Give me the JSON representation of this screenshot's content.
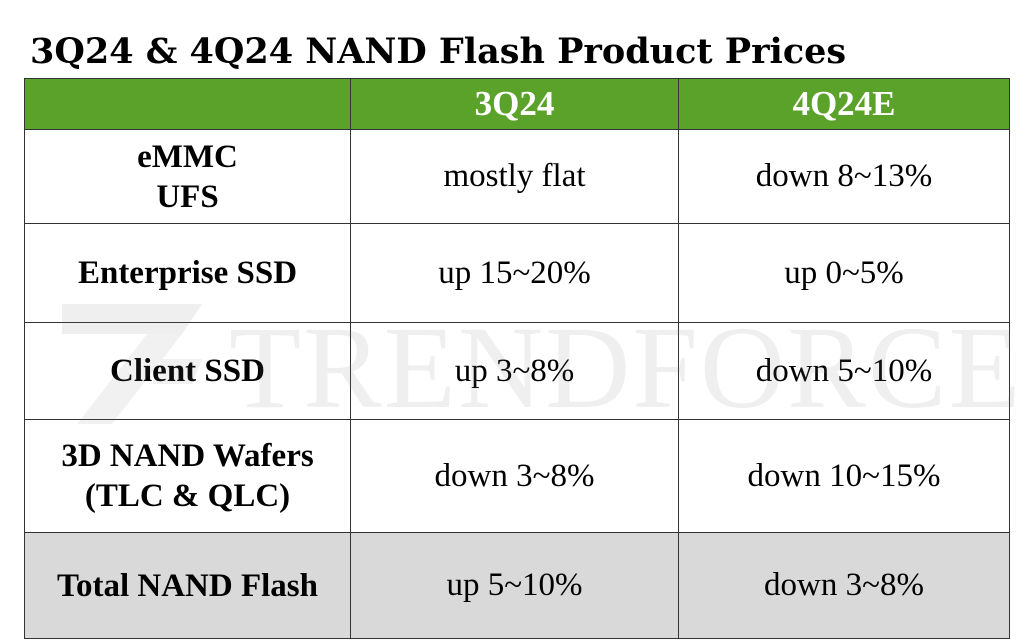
{
  "title": "3Q24 & 4Q24 NAND Flash Product Prices",
  "header": {
    "col0": "",
    "col1": "3Q24",
    "col2": "4Q24E"
  },
  "rows": [
    {
      "label_lines": [
        "eMMC",
        "UFS"
      ],
      "q3": "mostly flat",
      "q4": "down 8~13%"
    },
    {
      "label_lines": [
        "Enterprise SSD"
      ],
      "q3": "up 15~20%",
      "q4": "up 0~5%"
    },
    {
      "label_lines": [
        "Client SSD"
      ],
      "q3": "up 3~8%",
      "q4": "down 5~10%"
    },
    {
      "label_lines": [
        "3D NAND Wafers",
        "(TLC & QLC)"
      ],
      "q3": "down 3~8%",
      "q4": "down 10~15%"
    },
    {
      "label_lines": [
        "Total NAND Flash"
      ],
      "q3": "up 5~10%",
      "q4": "down 3~8%"
    }
  ],
  "watermark": {
    "text": "TRENDFORCE",
    "icon": "trendforce-logo-icon"
  },
  "colors": {
    "header_bg": "#5ba22a",
    "total_row_bg": "#d9d9d9",
    "border": "#333333"
  }
}
